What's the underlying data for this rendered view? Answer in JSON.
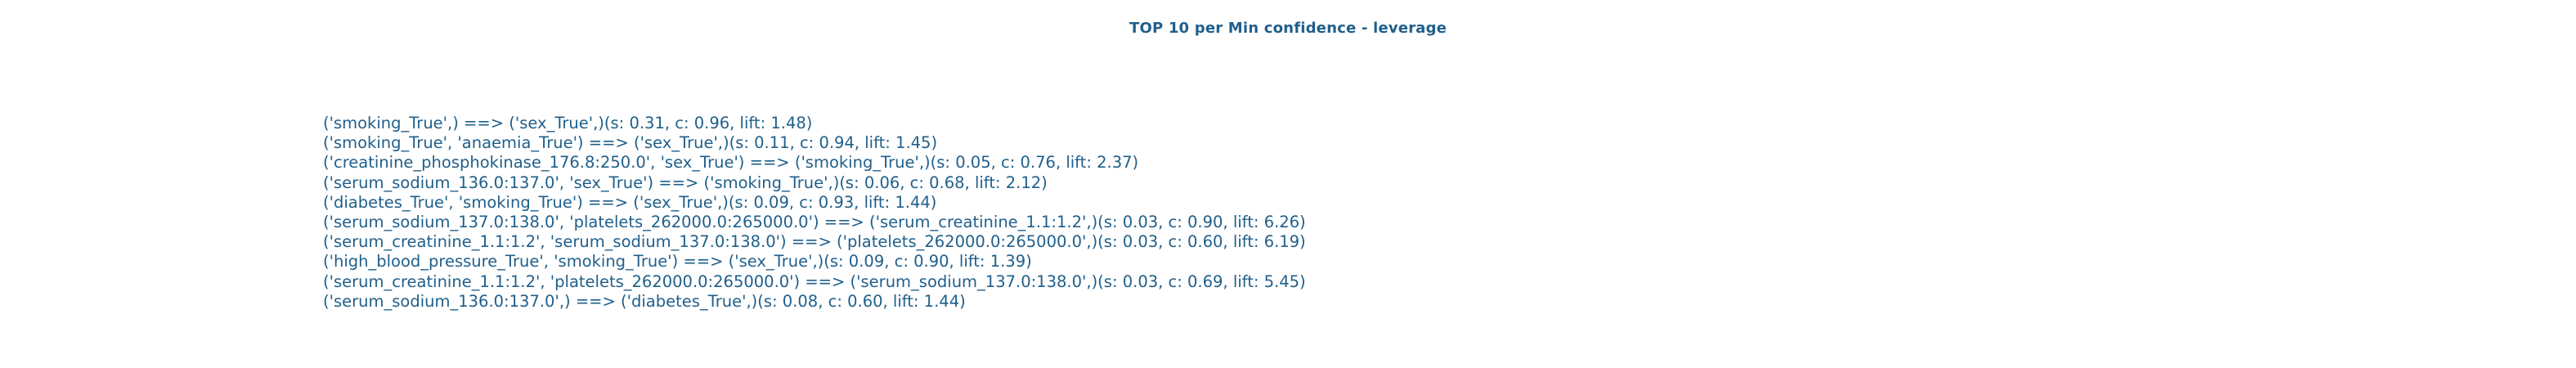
{
  "title": "TOP 10 per Min confidence - leverage",
  "rules": [
    "('smoking_True',) ==> ('sex_True',)(s: 0.31, c: 0.96, lift: 1.48)",
    "('smoking_True', 'anaemia_True') ==> ('sex_True',)(s: 0.11, c: 0.94, lift: 1.45)",
    "('creatinine_phosphokinase_176.8:250.0', 'sex_True') ==> ('smoking_True',)(s: 0.05, c: 0.76, lift: 2.37)",
    "('serum_sodium_136.0:137.0', 'sex_True') ==> ('smoking_True',)(s: 0.06, c: 0.68, lift: 2.12)",
    "('diabetes_True', 'smoking_True') ==> ('sex_True',)(s: 0.09, c: 0.93, lift: 1.44)",
    "('serum_sodium_137.0:138.0', 'platelets_262000.0:265000.0') ==> ('serum_creatinine_1.1:1.2',)(s: 0.03, c: 0.90, lift: 6.26)",
    "('serum_creatinine_1.1:1.2', 'serum_sodium_137.0:138.0') ==> ('platelets_262000.0:265000.0',)(s: 0.03, c: 0.60, lift: 6.19)",
    "('high_blood_pressure_True', 'smoking_True') ==> ('sex_True',)(s: 0.09, c: 0.90, lift: 1.39)",
    "('serum_creatinine_1.1:1.2', 'platelets_262000.0:265000.0') ==> ('serum_sodium_137.0:138.0',)(s: 0.03, c: 0.69, lift: 5.45)",
    "('serum_sodium_136.0:137.0',) ==> ('diabetes_True',)(s: 0.08, c: 0.60, lift: 1.44)"
  ],
  "colors": {
    "text": "#1f5f8b",
    "background": "#ffffff"
  }
}
